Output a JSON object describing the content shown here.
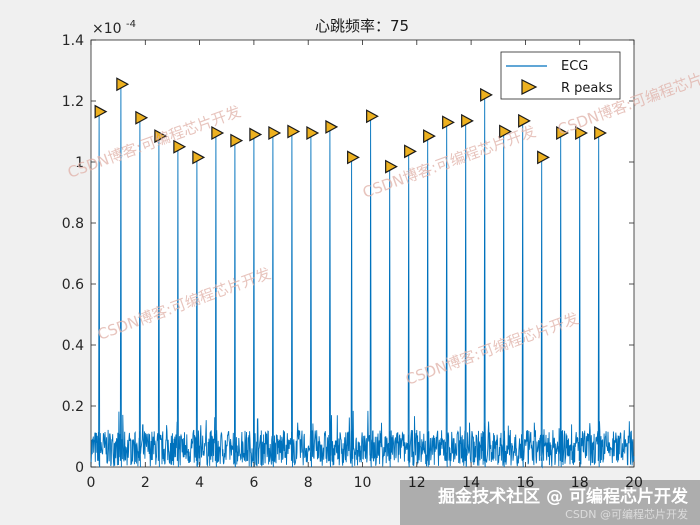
{
  "chart_data": {
    "type": "line",
    "title": "心跳频率：75",
    "xlabel": "",
    "ylabel": "",
    "xlim": [
      0,
      20
    ],
    "ylim": [
      0,
      1.4
    ],
    "y_exponent_label": "×10",
    "y_exponent_power": "-4",
    "x_ticks": [
      0,
      2,
      4,
      6,
      8,
      10,
      12,
      14,
      16,
      18,
      20
    ],
    "x_tick_labels": [
      "0",
      "2",
      "4",
      "6",
      "8",
      "10",
      "12",
      "14",
      "16",
      "18",
      "20"
    ],
    "y_ticks": [
      0,
      0.2,
      0.4,
      0.6,
      0.8,
      1,
      1.2,
      1.4
    ],
    "y_tick_labels": [
      "0",
      "0.2",
      "0.4",
      "0.6",
      "0.8",
      "1",
      "1.2",
      "1.4"
    ],
    "series": [
      {
        "name": "ECG",
        "kind": "line",
        "color": "#0072bd",
        "noise_floor": 0.05,
        "noise_amplitude": 0.12
      },
      {
        "name": "R peaks",
        "kind": "marker",
        "marker": "triangle-right",
        "color": "#edb120",
        "x": [
          0.3,
          1.1,
          1.8,
          2.5,
          3.2,
          3.9,
          4.6,
          5.3,
          6.0,
          6.7,
          7.4,
          8.1,
          8.8,
          9.6,
          10.3,
          11.0,
          11.7,
          12.4,
          13.1,
          13.8,
          14.5,
          15.2,
          15.9,
          16.6,
          17.3,
          18.0,
          18.7
        ],
        "values": [
          1.165,
          1.255,
          1.145,
          1.085,
          1.05,
          1.015,
          1.095,
          1.07,
          1.09,
          1.095,
          1.1,
          1.095,
          1.115,
          1.015,
          1.15,
          0.985,
          1.035,
          1.085,
          1.13,
          1.135,
          1.22,
          1.1,
          1.135,
          1.015,
          1.095,
          1.095,
          1.095
        ]
      }
    ],
    "legend": {
      "placement": "top-right",
      "entries": [
        "ECG",
        "R peaks"
      ]
    },
    "grid": false
  },
  "watermarks": [
    "CSDN博客:可编程芯片开发",
    "CSDN博客:可编程芯片开发",
    "CSDN博客:可编程芯片开发",
    "CSDN博客:可编程芯片开发",
    "CSDN博客:可编程芯片开发"
  ],
  "footer": {
    "main": "掘金技术社区 @ 可编程芯片开发",
    "sub": "CSDN @可编程芯片开发"
  }
}
